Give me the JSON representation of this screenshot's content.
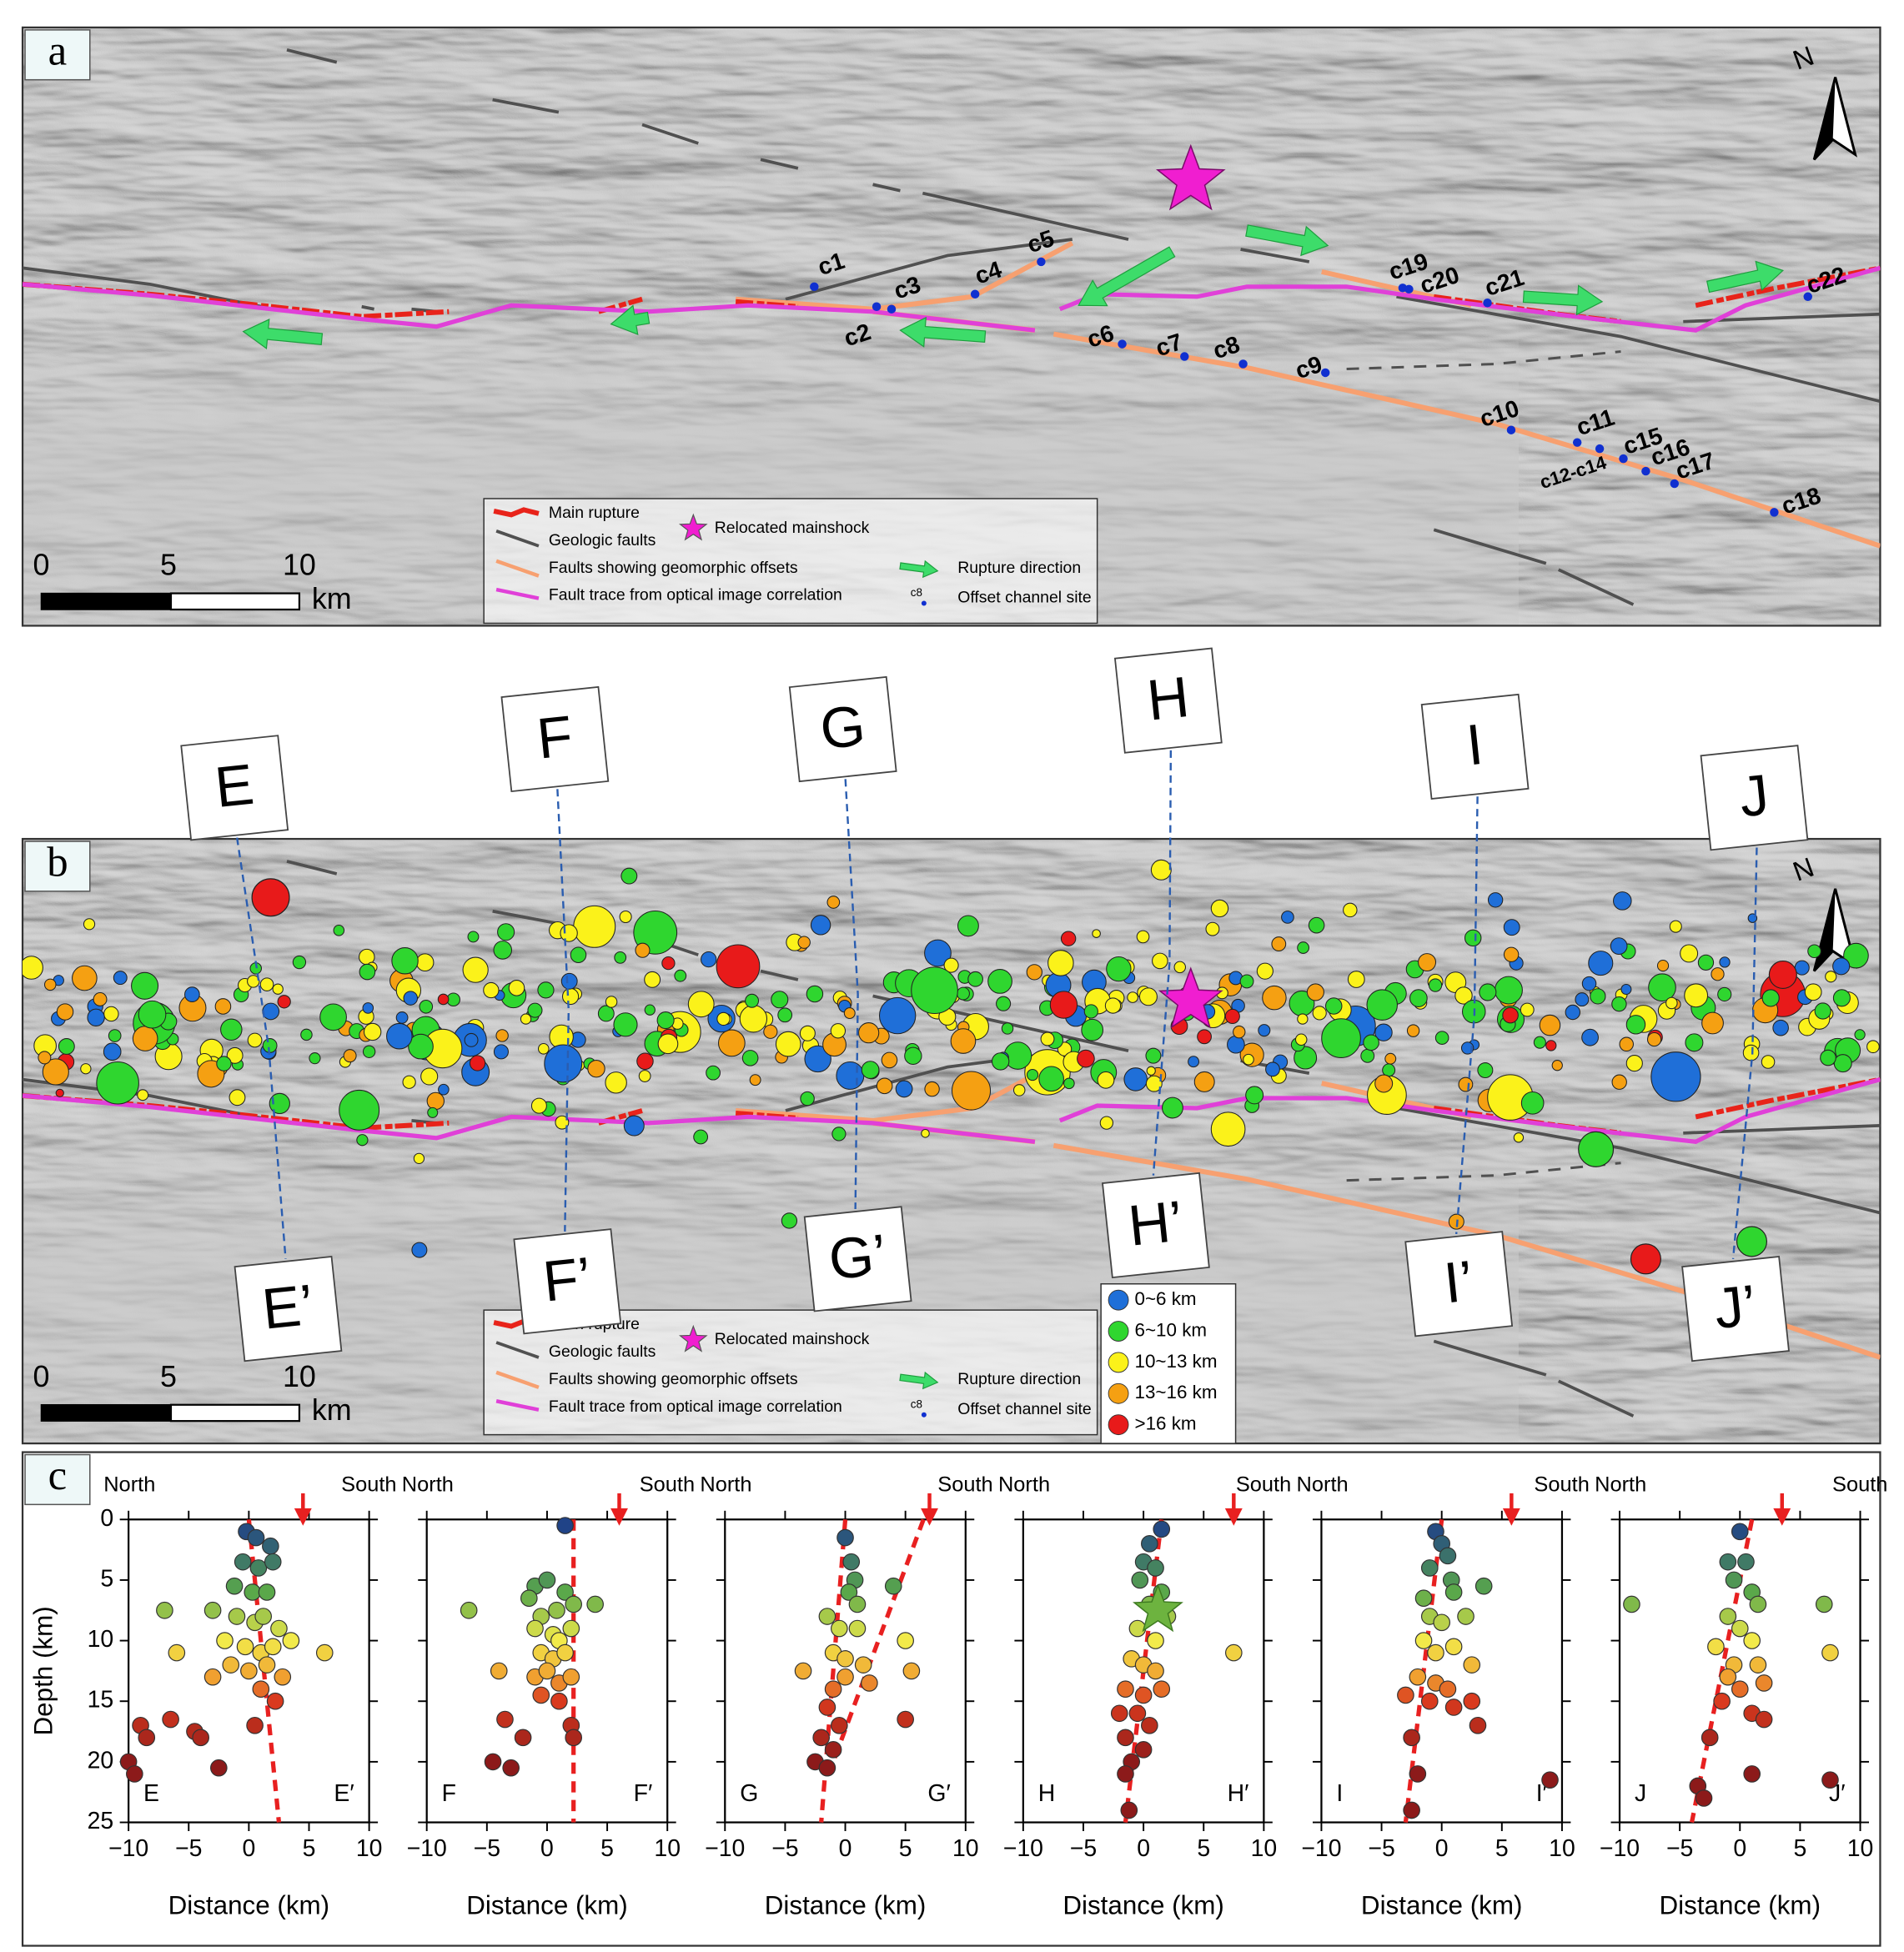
{
  "panel_a": {
    "label": "a",
    "north": "N",
    "scale_labels": [
      0,
      5,
      10,
      "km"
    ],
    "sites": [
      "c1",
      "c2",
      "c3",
      "c4",
      "c5",
      "c6",
      "c7",
      "c8",
      "c9",
      "c10",
      "c11",
      "c12-c14",
      "c15",
      "c16",
      "c17",
      "c18",
      "c19",
      "c20",
      "c21",
      "c22"
    ],
    "legend": {
      "main_rupture": "Main rupture",
      "geologic_faults": "Geologic faults",
      "geomorphic_faults": "Faults showing geomorphic offsets",
      "optical_trace": "Fault trace from optical image correlation",
      "mainshock": "Relocated mainshock",
      "rupture_direction": "Rupture direction",
      "site_icon": "c8",
      "offset_site": "Offset channel site"
    }
  },
  "panel_b": {
    "label": "b",
    "north": "N",
    "scale_labels": [
      0,
      5,
      10,
      "km"
    ],
    "profiles": [
      {
        "start": "E",
        "end": "E’"
      },
      {
        "start": "F",
        "end": "F’"
      },
      {
        "start": "G",
        "end": "G’"
      },
      {
        "start": "H",
        "end": "H’"
      },
      {
        "start": "I",
        "end": "I’"
      },
      {
        "start": "J",
        "end": "J’"
      }
    ],
    "depth_legend": [
      {
        "label": "0~6 km",
        "color": "#1f6fd8"
      },
      {
        "label": "6~10 km",
        "color": "#2fd62f"
      },
      {
        "label": "10~13 km",
        "color": "#fbf21a"
      },
      {
        "label": "13~16 km",
        "color": "#f5a012"
      },
      {
        "label": ">16 km",
        "color": "#e81a1a"
      }
    ],
    "legend": {
      "main_rupture": "Main rupture",
      "geologic_faults": "Geologic faults",
      "geomorphic_faults": "Faults showing geomorphic offsets",
      "optical_trace": "Fault trace from optical image correlation",
      "mainshock": "Relocated mainshock",
      "rupture_direction": "Rupture direction",
      "site_icon": "c8",
      "offset_site": "Offset channel site"
    }
  },
  "panel_c": {
    "label": "c",
    "depth_color_scale": [
      {
        "depth": 0,
        "color": "#1b3a8c"
      },
      {
        "depth": 6,
        "color": "#5aa84a"
      },
      {
        "depth": 10,
        "color": "#f2ea4a"
      },
      {
        "depth": 13,
        "color": "#f0a030"
      },
      {
        "depth": 15,
        "color": "#d93a1e"
      },
      {
        "depth": 20,
        "color": "#8c1a1a"
      }
    ],
    "trend_color": "#e82020",
    "mainshock_color": "#6db33f"
  },
  "chart_data": [
    {
      "type": "scatter",
      "left_label": "North",
      "right_label": "South",
      "start_label": "E",
      "end_label": "E′",
      "x_label": "Distance (km)",
      "y_label": "Depth (km)",
      "ytick_labels": true,
      "xlim": [
        -10,
        10
      ],
      "ylim": [
        0,
        25
      ],
      "y_inverted": true,
      "xticks": [
        {
          "value": -10,
          "label": "−10"
        },
        {
          "value": -5,
          "label": "−5"
        },
        0,
        5,
        10
      ],
      "yticks": [
        0,
        5,
        10,
        15,
        20,
        25
      ],
      "rupture_arrow_x": 4.5,
      "trend_lines": [
        [
          0,
          0,
          2.5,
          25
        ]
      ],
      "series": [
        {
          "x": [
            -0.2,
            0.6,
            1.8,
            -0.5,
            0.8,
            2.0,
            -1.2,
            0.3,
            1.5,
            -7,
            -3,
            -1,
            0.5,
            1.2,
            2.5,
            -6,
            -2,
            -0.3,
            1,
            2,
            3.5,
            6.3,
            -1.5,
            0,
            1.5,
            2.8,
            -3,
            1,
            2.2,
            0.5,
            -9,
            -8.5,
            -10,
            -6.5,
            -4.5,
            -2.5,
            -4,
            -9.5
          ],
          "y": [
            1,
            1.5,
            2.2,
            3.5,
            4,
            3.5,
            5.5,
            6,
            6,
            7.5,
            7.5,
            8,
            8.5,
            8,
            9,
            11,
            10,
            10.5,
            11,
            10.5,
            10,
            11,
            12,
            12.5,
            12,
            13,
            13,
            14,
            15,
            17,
            17,
            18,
            20,
            16.5,
            17.5,
            20.5,
            18,
            21
          ]
        }
      ]
    },
    {
      "type": "scatter",
      "left_label": "North",
      "right_label": "South",
      "start_label": "F",
      "end_label": "F′",
      "x_label": "Distance (km)",
      "ytick_labels": false,
      "xlim": [
        -10,
        10
      ],
      "ylim": [
        0,
        25
      ],
      "y_inverted": true,
      "xticks": [
        {
          "value": -10,
          "label": "−10"
        },
        {
          "value": -5,
          "label": "−5"
        },
        0,
        5,
        10
      ],
      "yticks": [
        0,
        5,
        10,
        15,
        20,
        25
      ],
      "rupture_arrow_x": 6,
      "trend_lines": [
        [
          2.2,
          0,
          2.2,
          25
        ]
      ],
      "series": [
        {
          "x": [
            1.5,
            -1,
            0,
            -1.5,
            1.5,
            2.2,
            -0.5,
            0.8,
            4,
            -6.5,
            -1,
            0.5,
            1,
            2,
            -0.5,
            0.5,
            1.5,
            -4,
            -1,
            0,
            1,
            2,
            -0.5,
            1,
            2,
            -3.5,
            -2,
            2.2,
            -4.5,
            -3
          ],
          "y": [
            0.5,
            5.5,
            5,
            6.5,
            6,
            7,
            8,
            7.5,
            7,
            7.5,
            9,
            9.5,
            10,
            9,
            11,
            11.5,
            11,
            12.5,
            13,
            12.5,
            13.5,
            13,
            14.5,
            15,
            17,
            16.5,
            18,
            18,
            20,
            20.5
          ]
        }
      ]
    },
    {
      "type": "scatter",
      "left_label": "North",
      "right_label": "South",
      "start_label": "G",
      "end_label": "G′",
      "x_label": "Distance (km)",
      "ytick_labels": false,
      "xlim": [
        -10,
        10
      ],
      "ylim": [
        0,
        25
      ],
      "y_inverted": true,
      "xticks": [
        {
          "value": -10,
          "label": "−10"
        },
        {
          "value": -5,
          "label": "−5"
        },
        0,
        5,
        10
      ],
      "yticks": [
        0,
        5,
        10,
        15,
        20,
        25
      ],
      "rupture_arrow_x": 7,
      "trend_lines": [
        [
          0,
          0,
          -2,
          25
        ],
        [
          6.5,
          0,
          -1,
          20
        ]
      ],
      "series": [
        {
          "x": [
            0,
            0.5,
            0.8,
            4,
            0.3,
            1,
            -1.5,
            -0.5,
            1,
            5,
            5.5,
            -1,
            0,
            1.5,
            -3.5,
            -1,
            0,
            2,
            -1.5,
            -0.5,
            5,
            -2,
            -1,
            -2.5,
            -1.5
          ],
          "y": [
            1.5,
            3.5,
            5,
            5.5,
            6,
            7,
            8,
            9,
            9,
            10,
            12.5,
            11,
            11.5,
            12,
            12.5,
            14,
            13,
            13.5,
            15.5,
            17,
            16.5,
            18,
            19,
            20,
            20.5
          ]
        }
      ]
    },
    {
      "type": "scatter",
      "left_label": "North",
      "right_label": "South",
      "start_label": "H",
      "end_label": "H′",
      "x_label": "Distance (km)",
      "ytick_labels": false,
      "xlim": [
        -10,
        10
      ],
      "ylim": [
        0,
        25
      ],
      "y_inverted": true,
      "xticks": [
        {
          "value": -10,
          "label": "−10"
        },
        {
          "value": -5,
          "label": "−5"
        },
        0,
        5,
        10
      ],
      "yticks": [
        0,
        5,
        10,
        15,
        20,
        25
      ],
      "rupture_arrow_x": 7.5,
      "trend_lines": [
        [
          1.5,
          0,
          -1.5,
          25
        ]
      ],
      "mainshock": {
        "x": 1.2,
        "y": 7.5
      },
      "series": [
        {
          "x": [
            1.5,
            0.5,
            0,
            1,
            -0.3,
            1.5,
            0.5,
            2,
            -0.5,
            1,
            7.5,
            -1,
            0,
            1,
            -1.5,
            0,
            1.5,
            -2,
            -0.5,
            0.5,
            -1.5,
            -1,
            0,
            -1.5,
            -1.2
          ],
          "y": [
            0.8,
            2,
            3.5,
            4,
            5,
            6,
            7,
            8,
            9,
            10,
            11,
            11.5,
            12,
            12.5,
            14,
            14.5,
            14,
            16,
            16,
            17,
            18,
            20,
            19,
            21,
            24
          ]
        }
      ]
    },
    {
      "type": "scatter",
      "left_label": "North",
      "right_label": "South",
      "start_label": "I",
      "end_label": "I′",
      "x_label": "Distance (km)",
      "ytick_labels": false,
      "xlim": [
        -10,
        10
      ],
      "ylim": [
        0,
        25
      ],
      "y_inverted": true,
      "xticks": [
        {
          "value": -10,
          "label": "−10"
        },
        {
          "value": -5,
          "label": "−5"
        },
        0,
        5,
        10
      ],
      "yticks": [
        0,
        5,
        10,
        15,
        20,
        25
      ],
      "rupture_arrow_x": 5.8,
      "trend_lines": [
        [
          0,
          0,
          -3,
          25
        ]
      ],
      "series": [
        {
          "x": [
            -0.5,
            0,
            0.5,
            -1,
            0.8,
            1,
            -1.5,
            3.5,
            -1,
            0,
            2,
            -1.5,
            -0.5,
            1,
            2.5,
            -2,
            -0.5,
            0.5,
            -3,
            -1,
            1,
            2.5,
            3,
            -2.5,
            -2,
            -2.5,
            9
          ],
          "y": [
            1,
            2,
            3,
            4,
            5,
            6,
            6.5,
            5.5,
            8,
            8.5,
            8,
            10,
            11,
            10.5,
            12,
            13,
            13.5,
            14,
            14.5,
            15,
            15.5,
            15,
            17,
            18,
            21,
            24,
            21.5
          ]
        }
      ]
    },
    {
      "type": "scatter",
      "left_label": "North",
      "right_label": "South",
      "start_label": "J",
      "end_label": "J′",
      "x_label": "Distance (km)",
      "ytick_labels": false,
      "xlim": [
        -10,
        10
      ],
      "ylim": [
        0,
        25
      ],
      "y_inverted": true,
      "xticks": [
        {
          "value": -10,
          "label": "−10"
        },
        {
          "value": -5,
          "label": "−5"
        },
        0,
        5,
        10
      ],
      "yticks": [
        0,
        5,
        10,
        15,
        20,
        25
      ],
      "rupture_arrow_x": 3.5,
      "trend_lines": [
        [
          1,
          0,
          -4,
          25
        ]
      ],
      "series": [
        {
          "x": [
            0,
            -1,
            0.5,
            -0.5,
            1,
            -9,
            7,
            1.5,
            -1,
            0,
            -2,
            1,
            7.5,
            -0.5,
            1.5,
            -1,
            0,
            2,
            -1.5,
            1,
            2,
            -2.5,
            1,
            -3.5,
            -3,
            7.5
          ],
          "y": [
            1,
            3.5,
            3.5,
            5,
            6,
            7,
            7,
            7,
            8,
            9,
            10.5,
            10,
            11,
            12,
            12,
            13,
            14,
            13.5,
            15,
            16,
            16.5,
            18,
            21,
            22,
            23,
            21.5
          ]
        }
      ]
    }
  ]
}
